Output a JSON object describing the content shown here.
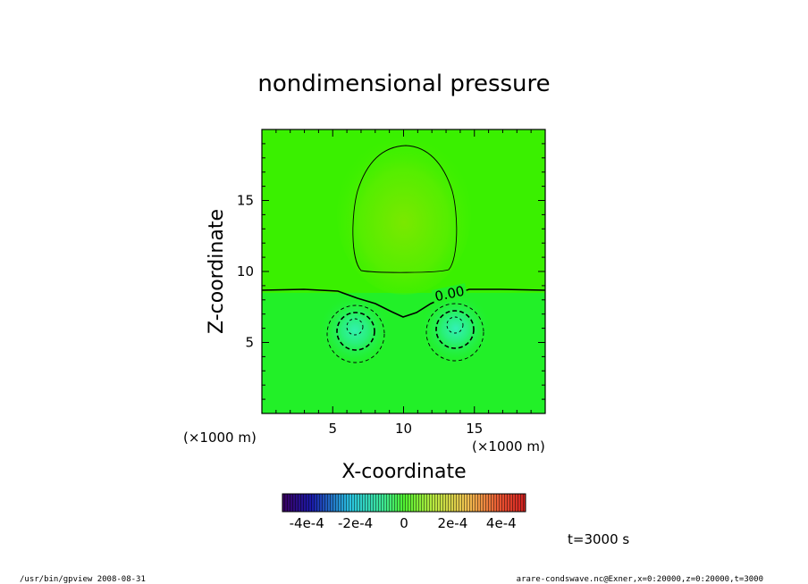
{
  "chart_data": {
    "type": "heatmap",
    "title": "nondimensional pressure",
    "xlabel": "X-coordinate",
    "ylabel": "Z-coordinate",
    "x_unit": "(×1000 m)",
    "y_unit": "(×1000 m)",
    "xlim": [
      0,
      20
    ],
    "ylim": [
      0,
      20
    ],
    "x_ticks": [
      "5",
      "10",
      "15"
    ],
    "y_ticks": [
      "5",
      "10",
      "15"
    ],
    "contour_label": "0.00",
    "colorbar": {
      "range": [
        -0.0005,
        0.0005
      ],
      "tick_labels": [
        "-4e-4",
        "-2e-4",
        "0",
        "2e-4",
        "4e-4"
      ],
      "tick_values": [
        -0.0004,
        -0.0002,
        0,
        0.0002,
        0.0004
      ]
    },
    "time_label": "t=3000 s"
  },
  "footer": {
    "left": "/usr/bin/gpview   2008-08-31",
    "right": "arare-condswave.nc@Exner,x=0:20000,z=0:20000,t=3000"
  }
}
